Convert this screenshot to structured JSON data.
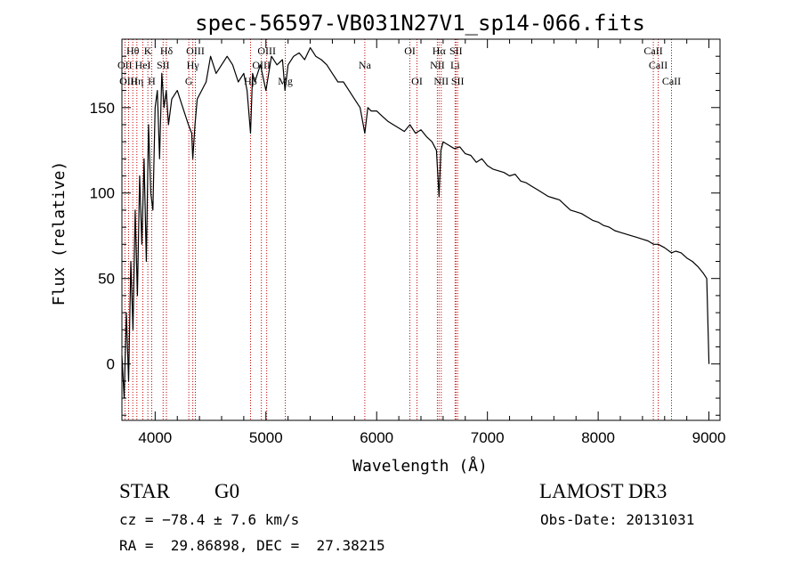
{
  "chart_data": {
    "type": "line",
    "title": "spec-56597-VB031N27V1_sp14-066.fits",
    "xlabel": "Wavelength (Å)",
    "ylabel": "Flux (relative)",
    "xlim": [
      3700,
      9100
    ],
    "ylim": [
      -33,
      190
    ],
    "xticks": [
      4000,
      5000,
      6000,
      7000,
      8000,
      9000
    ],
    "yticks": [
      0,
      50,
      100,
      150
    ],
    "grid": false,
    "series": [
      {
        "name": "flux",
        "x": [
          3700,
          3720,
          3740,
          3760,
          3780,
          3800,
          3820,
          3840,
          3860,
          3880,
          3900,
          3920,
          3940,
          3960,
          3980,
          4000,
          4020,
          4040,
          4060,
          4080,
          4100,
          4120,
          4150,
          4200,
          4250,
          4300,
          4330,
          4340,
          4360,
          4380,
          4420,
          4460,
          4500,
          4550,
          4600,
          4650,
          4700,
          4750,
          4800,
          4830,
          4861,
          4880,
          4900,
          4950,
          5000,
          5050,
          5100,
          5150,
          5172,
          5200,
          5250,
          5300,
          5350,
          5400,
          5450,
          5500,
          5550,
          5600,
          5650,
          5700,
          5750,
          5800,
          5850,
          5893,
          5920,
          5950,
          6000,
          6050,
          6100,
          6150,
          6200,
          6250,
          6300,
          6350,
          6400,
          6450,
          6500,
          6540,
          6563,
          6580,
          6600,
          6650,
          6700,
          6750,
          6800,
          6850,
          6900,
          6950,
          7000,
          7050,
          7100,
          7150,
          7200,
          7250,
          7300,
          7350,
          7400,
          7450,
          7500,
          7550,
          7600,
          7650,
          7700,
          7750,
          7800,
          7850,
          7900,
          7950,
          8000,
          8050,
          8100,
          8150,
          8200,
          8250,
          8300,
          8350,
          8400,
          8450,
          8500,
          8542,
          8600,
          8662,
          8700,
          8750,
          8800,
          8850,
          8900,
          8950,
          8980,
          9000
        ],
        "y": [
          5,
          -20,
          30,
          -10,
          60,
          20,
          90,
          40,
          110,
          70,
          120,
          60,
          140,
          100,
          90,
          150,
          160,
          120,
          170,
          150,
          160,
          140,
          155,
          160,
          150,
          140,
          135,
          120,
          140,
          155,
          160,
          165,
          180,
          170,
          175,
          180,
          175,
          165,
          170,
          160,
          135,
          170,
          165,
          175,
          160,
          180,
          175,
          178,
          160,
          175,
          180,
          182,
          178,
          185,
          180,
          178,
          175,
          170,
          165,
          165,
          160,
          155,
          150,
          135,
          150,
          148,
          148,
          145,
          142,
          140,
          138,
          136,
          140,
          135,
          137,
          133,
          130,
          125,
          98,
          125,
          130,
          128,
          126,
          127,
          123,
          122,
          118,
          120,
          116,
          114,
          113,
          112,
          110,
          111,
          107,
          106,
          104,
          102,
          100,
          98,
          97,
          96,
          93,
          90,
          89,
          88,
          86,
          84,
          83,
          81,
          80,
          78,
          77,
          76,
          75,
          74,
          73,
          72,
          70,
          70,
          68,
          65,
          66,
          65,
          62,
          60,
          57,
          53,
          50,
          0
        ]
      }
    ],
    "line_annotations": [
      {
        "label": "Hθ",
        "x": 3798,
        "row": 1
      },
      {
        "label": "OII",
        "x": 3727,
        "row": 2
      },
      {
        "label": "OIII",
        "x": 3760,
        "row": 3
      },
      {
        "label": "K",
        "x": 3934,
        "row": 1
      },
      {
        "label": "HeI",
        "x": 3889,
        "row": 2
      },
      {
        "label": "Hη",
        "x": 3835,
        "row": 3
      },
      {
        "label": "Hδ",
        "x": 4102,
        "row": 1
      },
      {
        "label": "SII",
        "x": 4072,
        "row": 2
      },
      {
        "label": "H",
        "x": 3969,
        "row": 3
      },
      {
        "label": "OIII",
        "x": 4363,
        "row": 1
      },
      {
        "label": "Hγ",
        "x": 4340,
        "row": 2
      },
      {
        "label": "G",
        "x": 4304,
        "row": 3
      },
      {
        "label": "OIII",
        "x": 5007,
        "row": 1
      },
      {
        "label": "OIII",
        "x": 4959,
        "row": 2
      },
      {
        "label": "Hβ",
        "x": 4861,
        "row": 3
      },
      {
        "label": "Mg",
        "x": 5175,
        "row": 3
      },
      {
        "label": "Na",
        "x": 5893,
        "row": 2
      },
      {
        "label": "OI",
        "x": 6300,
        "row": 1
      },
      {
        "label": "OI",
        "x": 6364,
        "row": 3
      },
      {
        "label": "Hα",
        "x": 6563,
        "row": 1
      },
      {
        "label": "NII",
        "x": 6548,
        "row": 2
      },
      {
        "label": "NII",
        "x": 6583,
        "row": 3
      },
      {
        "label": "SII",
        "x": 6716,
        "row": 1
      },
      {
        "label": "Li",
        "x": 6708,
        "row": 2
      },
      {
        "label": "SII",
        "x": 6731,
        "row": 3
      },
      {
        "label": "CaII",
        "x": 8498,
        "row": 1
      },
      {
        "label": "CaII",
        "x": 8542,
        "row": 2
      },
      {
        "label": "CaII",
        "x": 8662,
        "row": 3
      }
    ]
  },
  "info": {
    "object_class": "STAR",
    "subclass": "G0",
    "survey": "LAMOST DR3",
    "redshift": "cz = −78.4 ± 7.6 km/s",
    "obs_date": "Obs-Date: 20131031",
    "coords": "RA =  29.86898, DEC =  27.38215"
  },
  "colors": {
    "spectrum": "#000000",
    "line_marker": "#c00000",
    "axis": "#000000",
    "background": "#ffffff"
  }
}
